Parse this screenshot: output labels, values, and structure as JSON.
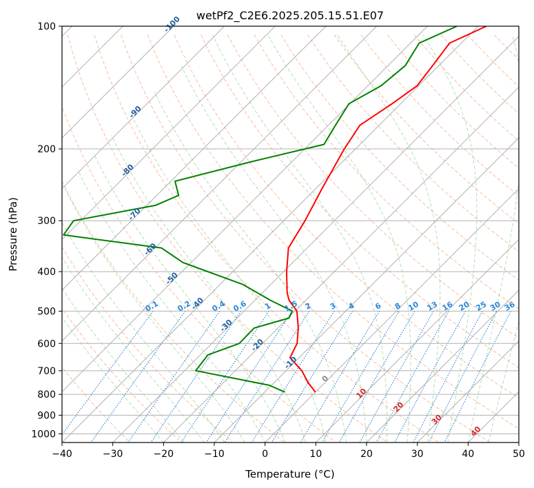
{
  "chart_data": {
    "type": "line",
    "title": "wetPf2_C2E6.2025.205.15.51.E07",
    "xlabel": "Temperature (°C)",
    "ylabel": "Pressure (hPa)",
    "xlim": [
      -40,
      50
    ],
    "ylim": [
      1050,
      100
    ],
    "y_scale": "log",
    "grid": true,
    "x_ticks": [
      -40,
      -30,
      -20,
      -10,
      0,
      10,
      20,
      30,
      40,
      50
    ],
    "y_ticks": [
      100,
      200,
      300,
      400,
      500,
      600,
      700,
      800,
      900,
      1000
    ],
    "isotherm_skew": 45,
    "mixing_ratio_labels": [
      "0.1",
      "0.2",
      "0.4",
      "0.6",
      "1",
      "1.5",
      "2",
      "3",
      "4",
      "6",
      "8",
      "10",
      "13",
      "16",
      "20",
      "25",
      "30",
      "36"
    ],
    "dry_adiabat_labels": [
      "-100",
      "-90",
      "-80",
      "-70",
      "-60",
      "-50",
      "-40",
      "-30",
      "-20",
      "-10",
      "0",
      "10",
      "20",
      "30",
      "40"
    ],
    "series": [
      {
        "color": "#ff0000",
        "points": [
          [
            -38.4,
            100
          ],
          [
            -42.3,
            110
          ],
          [
            -41.2,
            125
          ],
          [
            -40.3,
            140
          ],
          [
            -41.7,
            155
          ],
          [
            -43.8,
            175
          ],
          [
            -42.2,
            200
          ],
          [
            -38.8,
            250
          ],
          [
            -35.8,
            300
          ],
          [
            -33.7,
            350
          ],
          [
            -29.4,
            400
          ],
          [
            -25.2,
            450
          ],
          [
            -23.3,
            470
          ],
          [
            -19.6,
            500
          ],
          [
            -16.0,
            550
          ],
          [
            -13.2,
            600
          ],
          [
            -11.8,
            650
          ],
          [
            -6.9,
            700
          ],
          [
            -3.2,
            750
          ],
          [
            0.0,
            790
          ]
        ]
      },
      {
        "color": "#008000",
        "points": [
          [
            -44.2,
            100
          ],
          [
            -48.3,
            110
          ],
          [
            -46.6,
            125
          ],
          [
            -47.4,
            140
          ],
          [
            -50.2,
            155
          ],
          [
            -48.6,
            175
          ],
          [
            -47.1,
            195
          ],
          [
            -58.0,
            215
          ],
          [
            -69.2,
            240
          ],
          [
            -65.7,
            260
          ],
          [
            -68.3,
            275
          ],
          [
            -81.4,
            300
          ],
          [
            -80.6,
            325
          ],
          [
            -58.7,
            350
          ],
          [
            -51.6,
            380
          ],
          [
            -35.5,
            430
          ],
          [
            -27.0,
            470
          ],
          [
            -20.5,
            500
          ],
          [
            -19.8,
            520
          ],
          [
            -24.7,
            550
          ],
          [
            -24.6,
            600
          ],
          [
            -28.5,
            640
          ],
          [
            -27.8,
            700
          ],
          [
            -10.4,
            760
          ],
          [
            -6.0,
            790
          ]
        ]
      }
    ]
  }
}
